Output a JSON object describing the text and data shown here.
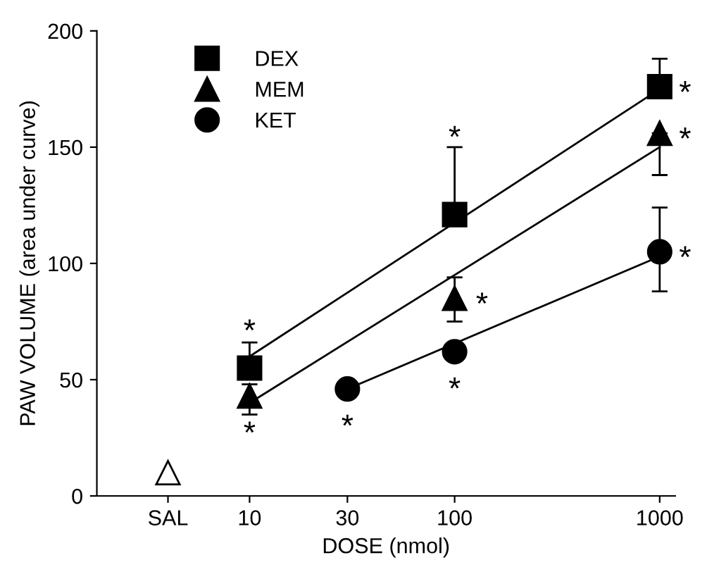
{
  "chart_data": {
    "type": "scatter",
    "xlabel": "DOSE (nmol)",
    "ylabel": "PAW VOLUME (area under curve)",
    "log": "x",
    "xlim": [
      1.8,
      1190
    ],
    "xticks": [
      {
        "value": 4,
        "label": "SAL"
      },
      10,
      30,
      100,
      1000
    ],
    "ylim": [
      0,
      200
    ],
    "yticks": [
      0,
      50,
      100,
      150,
      200
    ],
    "grid": false,
    "legend": "top left",
    "series": [
      {
        "name": "DEX",
        "marker": "square",
        "color": "#000000",
        "x": [
          10,
          100,
          1000
        ],
        "values": [
          55,
          121,
          176
        ],
        "errors": [
          [
            55,
            66
          ],
          [
            121,
            150
          ],
          [
            176,
            188
          ]
        ]
      },
      {
        "name": "MEM",
        "marker": "triangle",
        "color": "#000000",
        "x": [
          10,
          100,
          1000
        ],
        "values": [
          43,
          85,
          156
        ],
        "errors": [
          [
            35,
            48
          ],
          [
            75,
            94
          ],
          [
            138,
            156
          ]
        ]
      },
      {
        "name": "KET",
        "marker": "circle",
        "color": "#000000",
        "x": [
          30,
          100,
          1000
        ],
        "values": [
          46,
          62,
          105
        ],
        "errors": [
          null,
          null,
          [
            88,
            124
          ]
        ]
      },
      {
        "type": "scatter",
        "marker": "triangle",
        "color": "#ffffff",
        "x": [
          4
        ],
        "values": [
          10
        ]
      },
      {
        "type": "line",
        "color": "#000000",
        "x": [
          10,
          1000
        ],
        "values": [
          60,
          175
        ]
      },
      {
        "type": "line",
        "color": "#000000",
        "x": [
          10,
          1000
        ],
        "values": [
          40,
          150
        ]
      },
      {
        "type": "line",
        "color": "#000000",
        "x": [
          30,
          1000
        ],
        "values": [
          46,
          103
        ]
      }
    ],
    "annotations": [
      {
        "text": "*",
        "x": 10,
        "y": 55
      },
      {
        "text": "*",
        "x": 10,
        "y": 43
      },
      {
        "text": "*",
        "x": 100,
        "y": 150
      },
      {
        "text": "*",
        "x": 100,
        "y": 85
      },
      {
        "text": "*",
        "x": 30,
        "y": 46
      },
      {
        "text": "*",
        "x": 100,
        "y": 62
      },
      {
        "text": "*",
        "x": 1000,
        "y": 176
      },
      {
        "text": "*",
        "x": 1000,
        "y": 156
      },
      {
        "text": "*",
        "x": 1000,
        "y": 105
      }
    ]
  }
}
